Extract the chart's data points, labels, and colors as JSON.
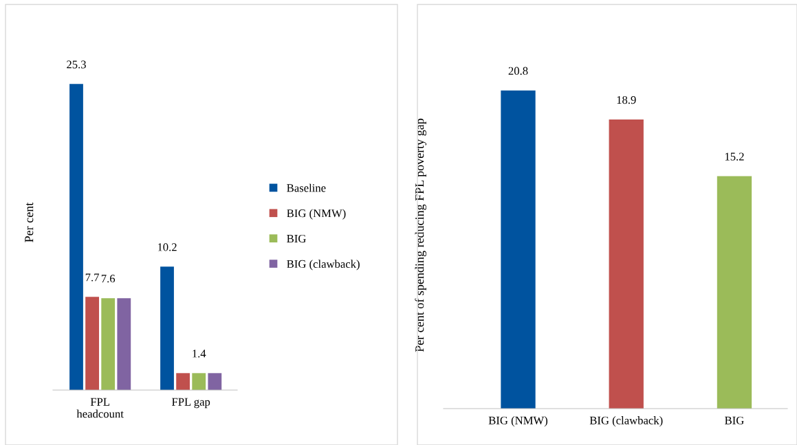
{
  "chart_data": [
    {
      "type": "bar",
      "ylabel": "Per cent",
      "categories": [
        "FPL\nheadcount",
        "FPL gap"
      ],
      "legend": "right",
      "series": [
        {
          "name": "Baseline",
          "color": "#00539f",
          "values": [
            25.3,
            10.2
          ],
          "value_labels": [
            "25.3",
            "10.2"
          ]
        },
        {
          "name": "BIG (NMW)",
          "color": "#c0504d",
          "values": [
            7.7,
            1.4
          ],
          "value_labels": [
            "7.7",
            null
          ]
        },
        {
          "name": "BIG",
          "color": "#9bbb59",
          "values": [
            7.6,
            1.4
          ],
          "value_labels": [
            "7.6",
            "1.4"
          ]
        },
        {
          "name": "BIG (clawback)",
          "color": "#8064a2",
          "values": [
            7.6,
            1.4
          ],
          "value_labels": [
            null,
            null
          ]
        }
      ]
    },
    {
      "type": "bar",
      "ylabel": "Per cent of spending reducing FPL poverty gap",
      "categories": [
        "BIG (NMW)",
        "BIG (clawback)",
        "BIG"
      ],
      "values": [
        20.8,
        18.9,
        15.2
      ],
      "colors": [
        "#00539f",
        "#c0504d",
        "#9bbb59"
      ],
      "data_labels": true
    }
  ]
}
